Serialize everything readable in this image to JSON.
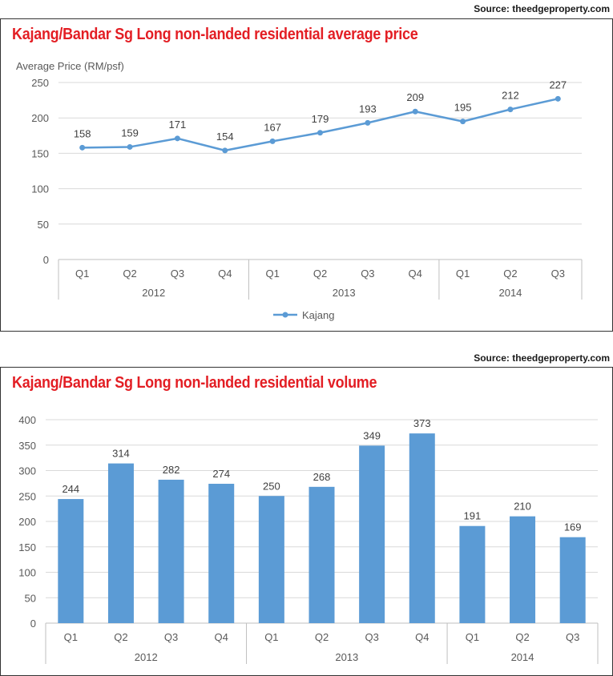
{
  "charts": [
    {
      "source": "Source: theedgeproperty.com",
      "title": "Kajang/Bandar Sg Long non-landed residential average price"
    },
    {
      "source": "Source: theedgeproperty.com",
      "title": "Kajang/Bandar Sg Long non-landed residential volume"
    }
  ],
  "chart_data": [
    {
      "type": "line",
      "title": "Kajang/Bandar Sg Long non-landed residential average price",
      "ylabel": "Average Price (RM/psf)",
      "xlabel": "",
      "categories": [
        "Q1",
        "Q2",
        "Q3",
        "Q4",
        "Q1",
        "Q2",
        "Q3",
        "Q4",
        "Q1",
        "Q2",
        "Q3"
      ],
      "groups": [
        {
          "label": "2012",
          "count": 4
        },
        {
          "label": "2013",
          "count": 4
        },
        {
          "label": "2014",
          "count": 3
        }
      ],
      "series": [
        {
          "name": "Kajang",
          "color": "#5b9bd5",
          "values": [
            158,
            159,
            171,
            154,
            167,
            179,
            193,
            209,
            195,
            212,
            227
          ]
        }
      ],
      "ylim": [
        0,
        250
      ],
      "yticks": [
        0,
        50,
        100,
        150,
        200,
        250
      ],
      "grid": true,
      "legend": "bottom"
    },
    {
      "type": "bar",
      "title": "Kajang/Bandar Sg Long non-landed residential volume",
      "ylabel": "",
      "xlabel": "",
      "categories": [
        "Q1",
        "Q2",
        "Q3",
        "Q4",
        "Q1",
        "Q2",
        "Q3",
        "Q4",
        "Q1",
        "Q2",
        "Q3"
      ],
      "groups": [
        {
          "label": "2012",
          "count": 4
        },
        {
          "label": "2013",
          "count": 4
        },
        {
          "label": "2014",
          "count": 3
        }
      ],
      "values": [
        244,
        314,
        282,
        274,
        250,
        268,
        349,
        373,
        191,
        210,
        169
      ],
      "color": "#5b9bd5",
      "ylim": [
        0,
        400
      ],
      "yticks": [
        0,
        50,
        100,
        150,
        200,
        250,
        300,
        350,
        400
      ],
      "grid": true
    }
  ]
}
